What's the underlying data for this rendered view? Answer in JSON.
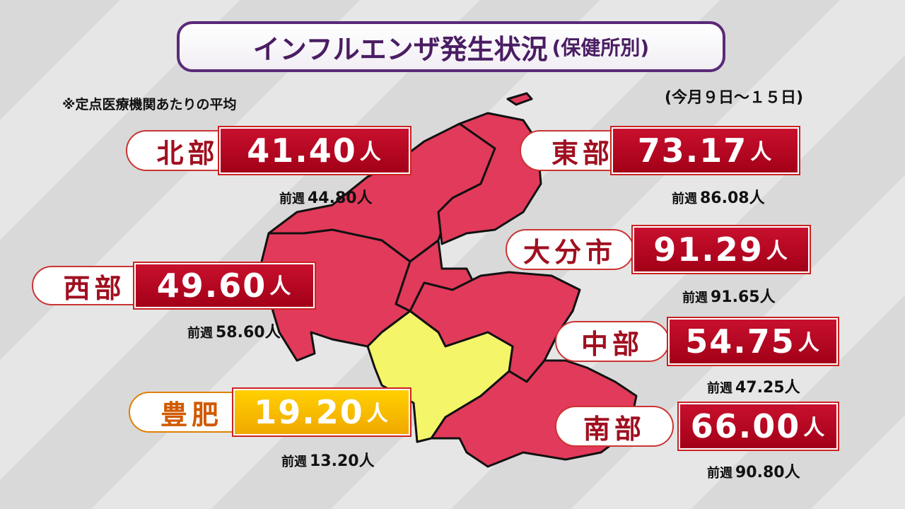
{
  "header": {
    "title": "インフルエンザ発生状況",
    "subtitle": "(保健所別)"
  },
  "note": "※定点医療機関あたりの平均",
  "period": "(今月９日～１５日)",
  "regions": [
    {
      "name": "北部",
      "value": "41.40",
      "unit": "人",
      "prev_label": "前週",
      "prev_value": "44.80人"
    },
    {
      "name": "東部",
      "value": "73.17",
      "unit": "人",
      "prev_label": "前週",
      "prev_value": "86.08人"
    },
    {
      "name": "大分市",
      "value": "91.29",
      "unit": "人",
      "prev_label": "前週",
      "prev_value": "91.65人"
    },
    {
      "name": "西部",
      "value": "49.60",
      "unit": "人",
      "prev_label": "前週",
      "prev_value": "58.60人"
    },
    {
      "name": "中部",
      "value": "54.75",
      "unit": "人",
      "prev_label": "前週",
      "prev_value": "47.25人"
    },
    {
      "name": "豊肥",
      "value": "19.20",
      "unit": "人",
      "prev_label": "前週",
      "prev_value": "13.20人"
    },
    {
      "name": "南部",
      "value": "66.00",
      "unit": "人",
      "prev_label": "前週",
      "prev_value": "90.80人"
    }
  ]
}
